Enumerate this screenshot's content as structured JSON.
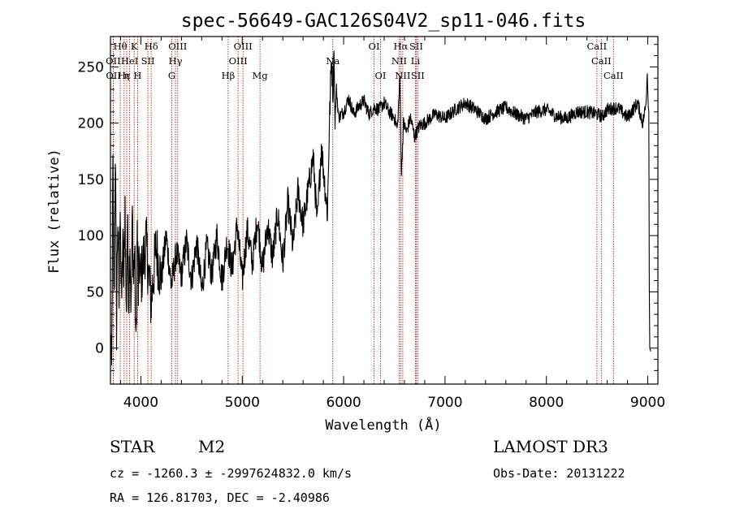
{
  "chart_data": {
    "type": "line",
    "title": "spec-56649-GAC126S04V2_sp11-046.fits",
    "xlabel": "Wavelength (Å)",
    "ylabel": "Flux (relative)",
    "xlim": [
      3700,
      9100
    ],
    "ylim": [
      -32,
      277
    ],
    "xticks": [
      4000,
      5000,
      6000,
      7000,
      8000,
      9000
    ],
    "yticks": [
      0,
      50,
      100,
      150,
      200,
      250
    ],
    "series": [
      {
        "name": "flux",
        "x": [
          3700,
          3712,
          3724,
          3736,
          3748,
          3760,
          3772,
          3784,
          3796,
          3808,
          3820,
          3832,
          3844,
          3856,
          3868,
          3880,
          3892,
          3904,
          3916,
          3928,
          3940,
          3952,
          3964,
          3976,
          3988,
          4000,
          4050,
          4100,
          4150,
          4200,
          4250,
          4300,
          4350,
          4400,
          4450,
          4500,
          4550,
          4600,
          4650,
          4700,
          4750,
          4800,
          4850,
          4900,
          4950,
          5000,
          5050,
          5100,
          5150,
          5200,
          5250,
          5300,
          5350,
          5400,
          5450,
          5500,
          5550,
          5600,
          5650,
          5700,
          5740,
          5780,
          5810,
          5840,
          5860,
          5880,
          5895,
          5905,
          5915,
          5930,
          5950,
          6000,
          6050,
          6100,
          6150,
          6200,
          6250,
          6300,
          6350,
          6400,
          6450,
          6500,
          6530,
          6555,
          6570,
          6590,
          6620,
          6660,
          6700,
          6750,
          6800,
          6900,
          7000,
          7100,
          7200,
          7300,
          7400,
          7500,
          7600,
          7700,
          7800,
          7900,
          8000,
          8100,
          8200,
          8300,
          8400,
          8500,
          8550,
          8600,
          8700,
          8800,
          8900,
          8950,
          8980,
          8995,
          9005,
          9010,
          9015,
          9020,
          9030
        ],
        "y": [
          10,
          -25,
          160,
          35,
          180,
          20,
          120,
          40,
          140,
          30,
          95,
          55,
          130,
          25,
          110,
          45,
          100,
          30,
          120,
          60,
          90,
          -8,
          105,
          50,
          75,
          60,
          95,
          40,
          90,
          60,
          100,
          55,
          85,
          65,
          95,
          60,
          95,
          50,
          90,
          65,
          100,
          60,
          95,
          70,
          110,
          60,
          105,
          75,
          115,
          70,
          110,
          80,
          120,
          75,
          130,
          90,
          140,
          110,
          140,
          170,
          110,
          180,
          150,
          120,
          200,
          260,
          225,
          270,
          200,
          230,
          205,
          210,
          222,
          208,
          215,
          220,
          208,
          214,
          212,
          218,
          210,
          205,
          195,
          240,
          155,
          200,
          192,
          205,
          188,
          198,
          200,
          208,
          204,
          212,
          218,
          212,
          204,
          210,
          214,
          208,
          204,
          210,
          212,
          206,
          204,
          210,
          210,
          208,
          206,
          212,
          214,
          205,
          218,
          200,
          215,
          244,
          215,
          210,
          55,
          0,
          -3
        ]
      }
    ],
    "line_markers": [
      {
        "label": "Hθ",
        "x": 3797,
        "row": 1
      },
      {
        "label": "OII",
        "x": 3727,
        "row": 2
      },
      {
        "label": "OII",
        "x": 3729,
        "row": 3
      },
      {
        "label": "Hε",
        "x": 3835,
        "row": 3
      },
      {
        "label": "η",
        "x": 3860,
        "row": 3
      },
      {
        "label": "K",
        "x": 3934,
        "row": 1
      },
      {
        "label": "HeI",
        "x": 3889,
        "row": 2
      },
      {
        "label": "SII",
        "x": 4069,
        "row": 2
      },
      {
        "label": "H",
        "x": 3968,
        "row": 3
      },
      {
        "label": "Hδ",
        "x": 4102,
        "row": 1
      },
      {
        "label": "OIII",
        "x": 4363,
        "row": 1
      },
      {
        "label": "Hγ",
        "x": 4341,
        "row": 2
      },
      {
        "label": "G",
        "x": 4305,
        "row": 3
      },
      {
        "label": "Hβ",
        "x": 4861,
        "row": 3
      },
      {
        "label": "OIII",
        "x": 5007,
        "row": 1
      },
      {
        "label": "OIII",
        "x": 4959,
        "row": 2
      },
      {
        "label": "Mg",
        "x": 5175,
        "row": 3
      },
      {
        "label": "Na",
        "x": 5893,
        "row": 2
      },
      {
        "label": "OI",
        "x": 6300,
        "row": 1
      },
      {
        "label": "OI",
        "x": 6364,
        "row": 3
      },
      {
        "label": "Hα",
        "x": 6563,
        "row": 1
      },
      {
        "label": "NII",
        "x": 6548,
        "row": 2
      },
      {
        "label": "NII",
        "x": 6583,
        "row": 3
      },
      {
        "label": "SII",
        "x": 6716,
        "row": 1
      },
      {
        "label": "Li",
        "x": 6708,
        "row": 2
      },
      {
        "label": "SII",
        "x": 6731,
        "row": 3
      },
      {
        "label": "CaII",
        "x": 8498,
        "row": 1
      },
      {
        "label": "CaII",
        "x": 8542,
        "row": 2
      },
      {
        "label": "CaII",
        "x": 8662,
        "row": 3
      }
    ]
  },
  "info": {
    "class_label": "STAR",
    "subclass": "M2",
    "survey": "LAMOST DR3",
    "cz_line": "cz = -1260.3 ± -2997624832.0 km/s",
    "obs_date": "Obs-Date: 20131222",
    "radec_line": "RA = 126.81703, DEC =  -2.40986"
  },
  "colors": {
    "line": "#000000",
    "marker": "#b22222"
  }
}
